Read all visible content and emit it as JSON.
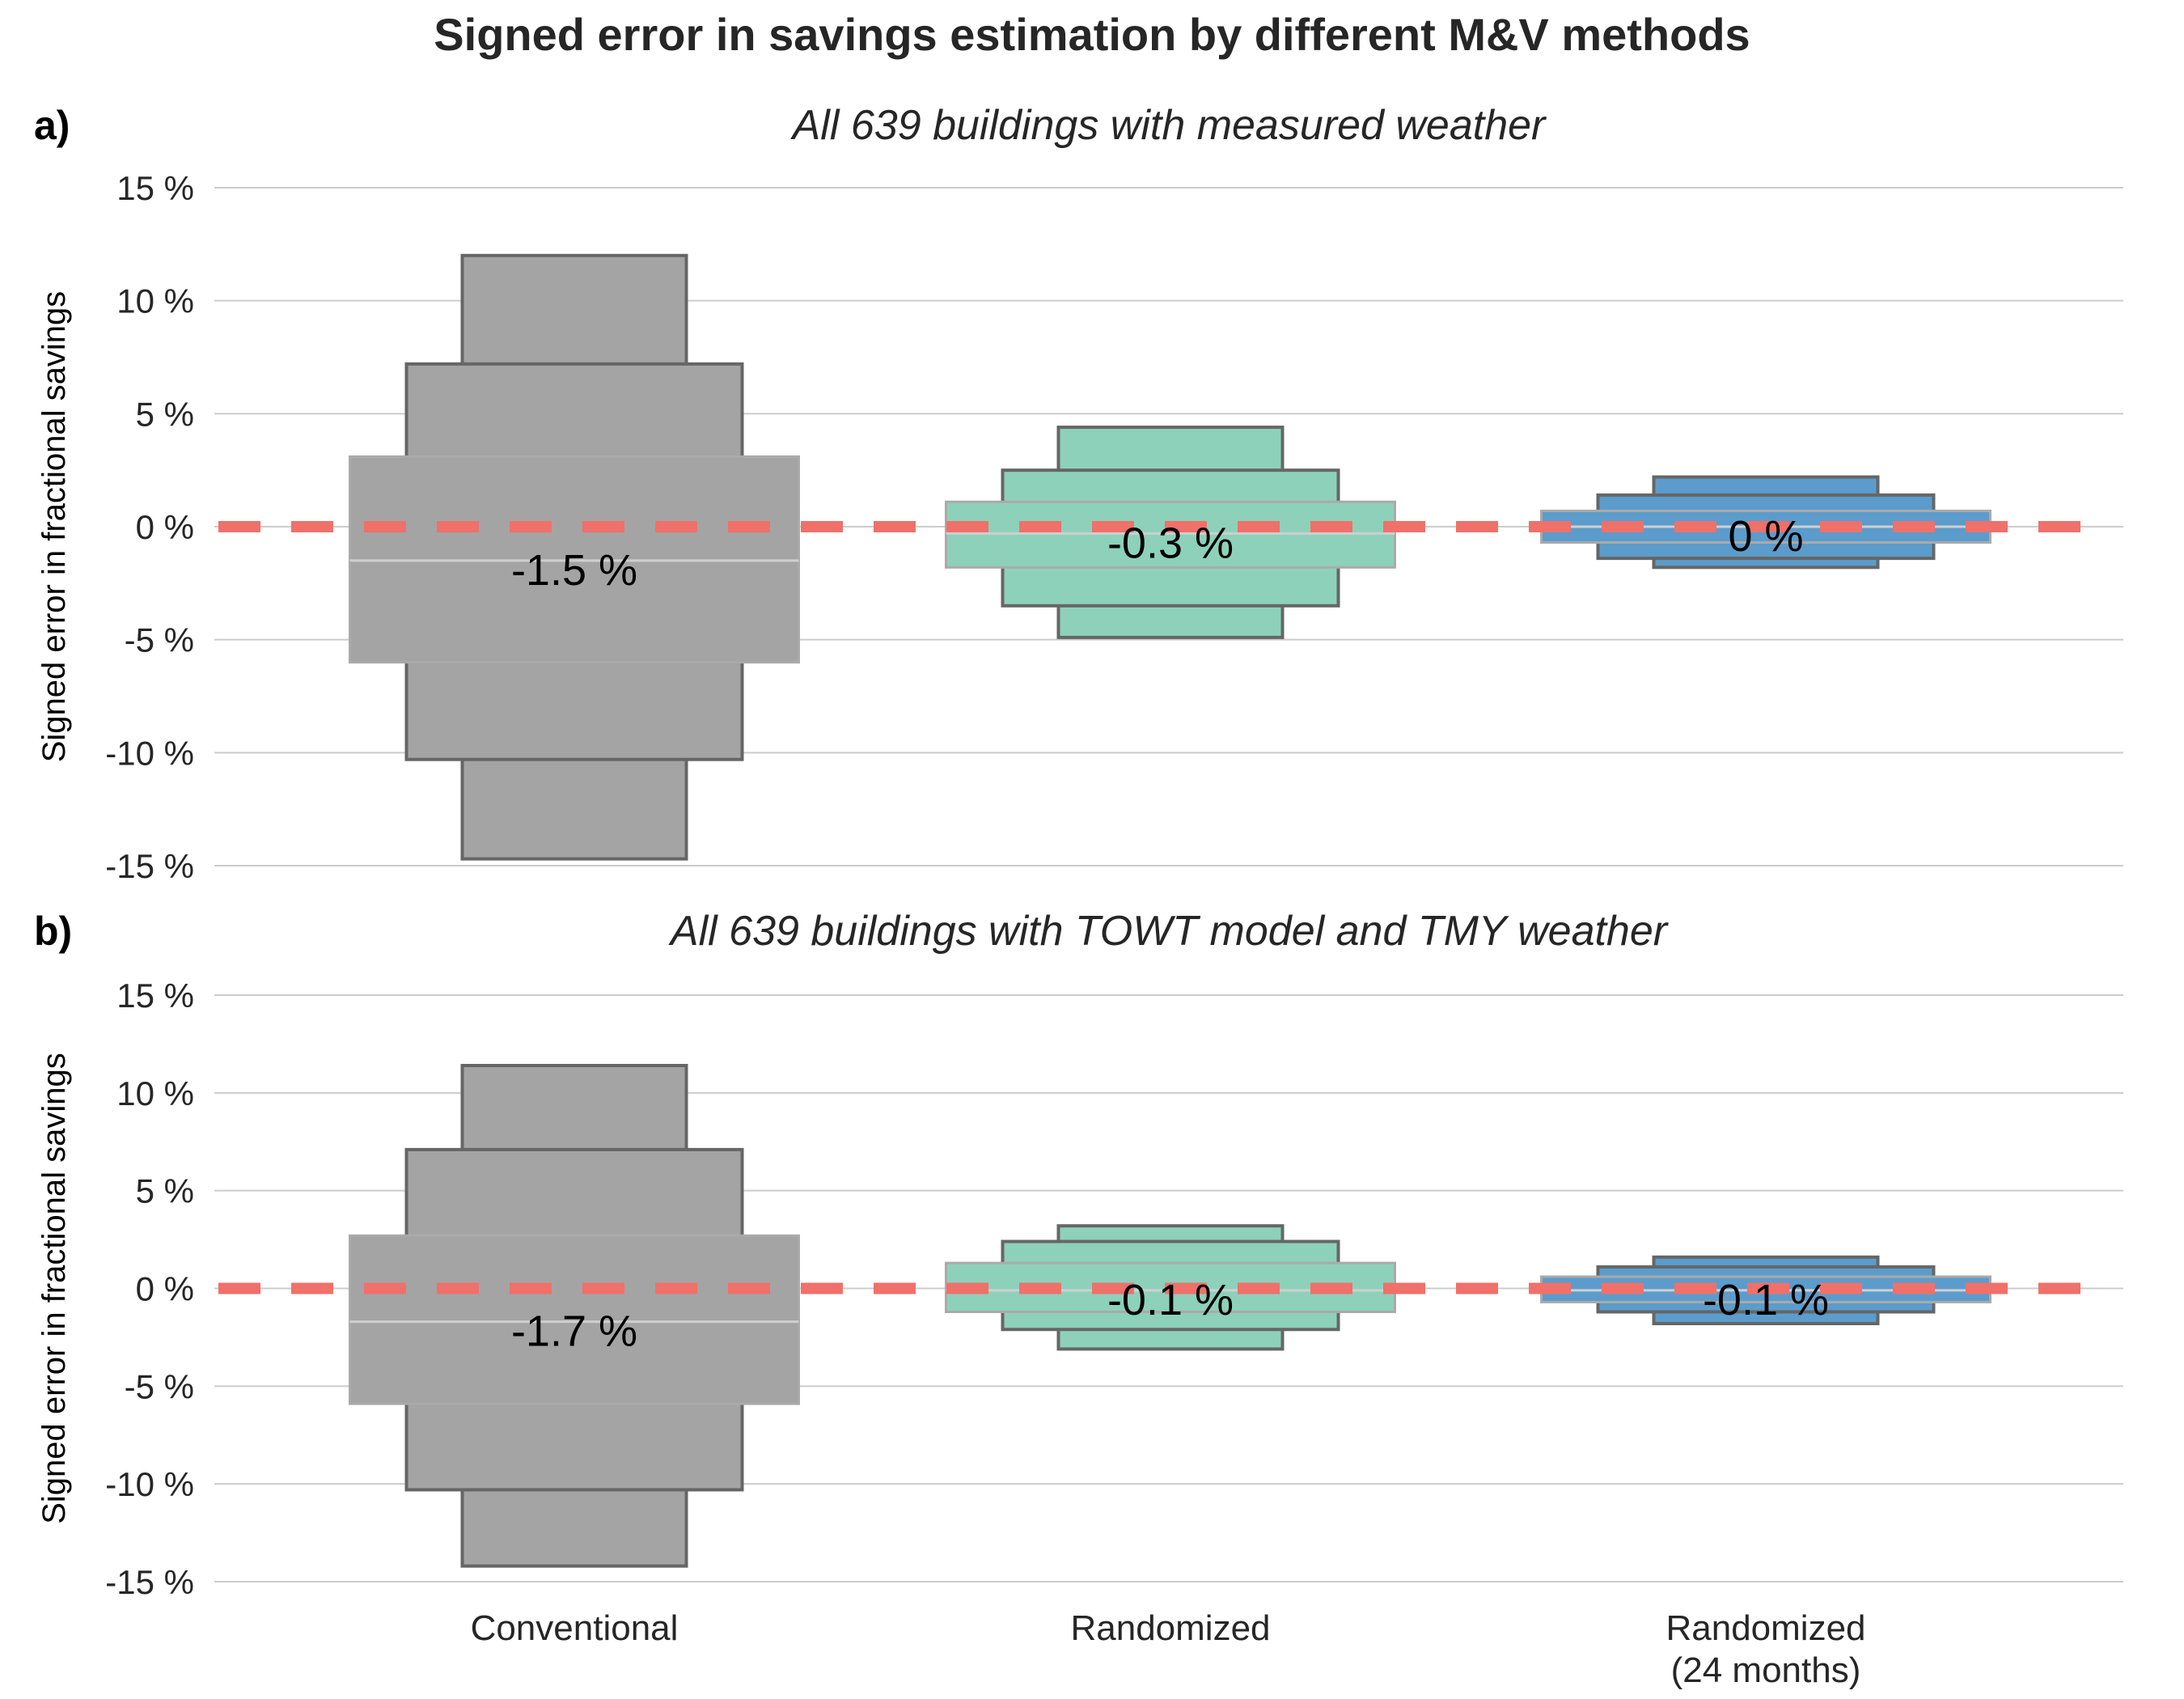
{
  "title": "Signed error in savings estimation by different M&V methods",
  "colors": {
    "Conventional": "#a4a4a4",
    "Randomized": "#8dd1bb",
    "Randomized (24 months)": "#5b9ccc",
    "reference_line": "#f0706a",
    "box_edge": "#666666",
    "grid": "#cccccc"
  },
  "chart_data": [
    {
      "type": "boxen",
      "panel_label": "a)",
      "subtitle": "All 639 buildings with measured weather",
      "ylabel": "Signed error in fractional savings",
      "ylim": [
        -15,
        15
      ],
      "yticks": [
        15,
        10,
        5,
        0,
        -5,
        -10,
        -15
      ],
      "ytick_labels": [
        "15 %",
        "10 %",
        "5 %",
        "0 %",
        "-5 %",
        "-10 %",
        "-15 %"
      ],
      "reference_line_y": 0,
      "grid": true,
      "categories": [
        "Conventional",
        "Randomized",
        "Randomized\n(24 months)"
      ],
      "series": [
        {
          "category": "Conventional",
          "levels": [
            [
              -6.0,
              3.1
            ],
            [
              -10.3,
              7.2
            ],
            [
              -14.7,
              12.0
            ]
          ],
          "median": -1.5,
          "median_label": "-1.5 %"
        },
        {
          "category": "Randomized",
          "levels": [
            [
              -1.8,
              1.1
            ],
            [
              -3.5,
              2.5
            ],
            [
              -4.9,
              4.4
            ]
          ],
          "median": -0.3,
          "median_label": "-0.3 %"
        },
        {
          "category": "Randomized (24 months)",
          "levels": [
            [
              -0.7,
              0.7
            ],
            [
              -1.4,
              1.4
            ],
            [
              -1.8,
              2.2
            ]
          ],
          "median": 0.0,
          "median_label": "0 %"
        }
      ]
    },
    {
      "type": "boxen",
      "panel_label": "b)",
      "subtitle": "All 639 buildings with TOWT model and TMY weather",
      "ylabel": "Signed error in fractional savings",
      "ylim": [
        -15,
        15
      ],
      "yticks": [
        15,
        10,
        5,
        0,
        -5,
        -10,
        -15
      ],
      "ytick_labels": [
        "15 %",
        "10 %",
        "5 %",
        "0 %",
        "-5 %",
        "-10 %",
        "-15 %"
      ],
      "reference_line_y": 0,
      "grid": true,
      "categories": [
        "Conventional",
        "Randomized",
        "Randomized\n(24 months)"
      ],
      "series": [
        {
          "category": "Conventional",
          "levels": [
            [
              -5.9,
              2.7
            ],
            [
              -10.3,
              7.1
            ],
            [
              -14.2,
              11.4
            ]
          ],
          "median": -1.7,
          "median_label": "-1.7 %"
        },
        {
          "category": "Randomized",
          "levels": [
            [
              -1.2,
              1.3
            ],
            [
              -2.1,
              2.4
            ],
            [
              -3.1,
              3.2
            ]
          ],
          "median": -0.1,
          "median_label": "-0.1 %"
        },
        {
          "category": "Randomized (24 months)",
          "levels": [
            [
              -0.7,
              0.6
            ],
            [
              -1.2,
              1.1
            ],
            [
              -1.8,
              1.6
            ]
          ],
          "median": -0.1,
          "median_label": "-0.1 %"
        }
      ]
    }
  ]
}
